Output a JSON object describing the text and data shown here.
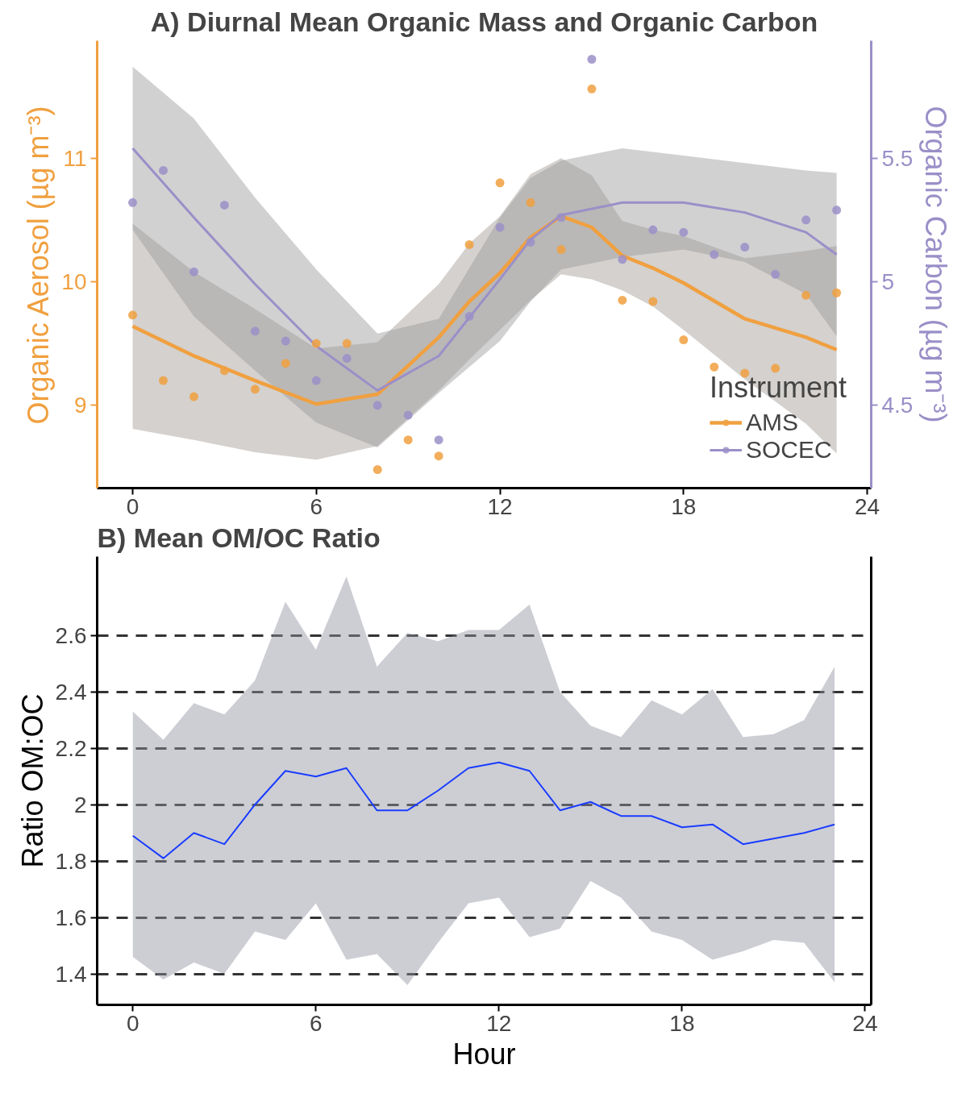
{
  "chart_data": [
    {
      "type": "scatter",
      "title": "A) Diurnal Mean Organic Mass and Organic Carbon",
      "ylabel": "Organic Aerosol (µg m⁻³)",
      "y2label": "Organic Carbon (µg m⁻³)",
      "legend_title": "Instrument",
      "legend": "bottom right",
      "marker": "circle",
      "x": [
        0,
        1,
        2,
        3,
        4,
        5,
        6,
        7,
        8,
        9,
        10,
        11,
        12,
        13,
        14,
        15,
        16,
        17,
        18,
        19,
        20,
        21,
        22,
        23
      ],
      "xlim": [
        -1.16,
        24.13
      ],
      "xticks": [
        0,
        6,
        12,
        18,
        24
      ],
      "ylim": [
        8.33,
        11.95
      ],
      "yticks": [
        9,
        10,
        11
      ],
      "y2lim": [
        4.165,
        5.975
      ],
      "y2ticks": [
        4.5,
        5.0,
        5.5
      ],
      "series": [
        {
          "name": "AMS",
          "type": "line",
          "marker": "none",
          "color": "#f0a040",
          "x": [
            0,
            2,
            4,
            6,
            8,
            10,
            11,
            12,
            13,
            14,
            15,
            16,
            17,
            18,
            20,
            22,
            23
          ],
          "values": [
            9.64,
            9.4,
            9.2,
            9.01,
            9.09,
            9.55,
            9.84,
            10.07,
            10.36,
            10.53,
            10.44,
            10.21,
            10.11,
            9.99,
            9.7,
            9.55,
            9.45
          ],
          "lower": [
            8.81,
            8.72,
            8.62,
            8.56,
            8.67,
            9.12,
            9.37,
            9.61,
            9.85,
            10.06,
            10.02,
            9.93,
            9.8,
            9.61,
            9.21,
            8.85,
            8.61
          ],
          "upper": [
            10.47,
            10.08,
            9.78,
            9.46,
            9.51,
            9.98,
            10.31,
            10.53,
            10.87,
            11.0,
            10.86,
            10.49,
            10.42,
            10.37,
            10.19,
            10.25,
            10.29
          ]
        },
        {
          "name": "SOCEC",
          "type": "line",
          "marker": "none",
          "axis": "y2",
          "color": "#9b8fc8",
          "x": [
            0,
            2,
            4,
            6,
            8,
            10,
            12,
            13,
            14,
            16,
            18,
            20,
            22,
            23
          ],
          "values": [
            5.54,
            5.26,
            4.99,
            4.74,
            4.56,
            4.7,
            5.01,
            5.17,
            5.27,
            5.32,
            5.32,
            5.28,
            5.2,
            5.11
          ],
          "lower": [
            5.21,
            4.86,
            4.64,
            4.43,
            4.33,
            4.55,
            4.76,
            4.92,
            5.05,
            5.1,
            5.13,
            5.08,
            4.95,
            4.78
          ],
          "upper": [
            5.87,
            5.66,
            5.34,
            5.05,
            4.79,
            4.85,
            5.26,
            5.42,
            5.49,
            5.54,
            5.51,
            5.48,
            5.45,
            5.44
          ]
        },
        {
          "type": "scatter",
          "color": "#f0a040",
          "values": [
            9.73,
            9.2,
            9.07,
            9.28,
            9.13,
            9.34,
            9.5,
            9.5,
            8.48,
            8.72,
            8.59,
            10.3,
            10.8,
            10.64,
            10.26,
            11.56,
            9.85,
            9.84,
            9.53,
            9.31,
            9.26,
            9.3,
            9.89,
            9.91
          ]
        },
        {
          "type": "scatter",
          "axis": "y2",
          "color": "#9b8fc8",
          "values": [
            5.32,
            5.45,
            5.04,
            5.31,
            4.8,
            4.76,
            4.6,
            4.69,
            4.5,
            4.46,
            4.36,
            4.86,
            5.22,
            5.16,
            5.26,
            5.9,
            5.09,
            5.21,
            5.2,
            5.11,
            5.14,
            5.03,
            5.25,
            5.29
          ]
        }
      ]
    },
    {
      "type": "line",
      "title": "B) Mean OM/OC Ratio",
      "xlabel": "Hour",
      "ylabel": "Ratio OM:OC",
      "grid": "y",
      "x": [
        0,
        1,
        2,
        3,
        4,
        5,
        6,
        7,
        8,
        9,
        10,
        11,
        12,
        13,
        14,
        15,
        16,
        17,
        18,
        19,
        20,
        21,
        22,
        23
      ],
      "xlim": [
        -1.17,
        24.2
      ],
      "xticks": [
        0,
        6,
        12,
        18,
        24
      ],
      "ylim": [
        1.29,
        2.88
      ],
      "yticks": [
        1.4,
        1.6,
        1.8,
        2,
        2.2,
        2.4,
        2.6
      ],
      "series": [
        {
          "color": "#1a3cff",
          "values": [
            1.89,
            1.81,
            1.9,
            1.86,
            2.0,
            2.12,
            2.1,
            2.13,
            1.98,
            1.98,
            2.05,
            2.13,
            2.15,
            2.12,
            1.98,
            2.01,
            1.96,
            1.96,
            1.92,
            1.93,
            1.86,
            1.88,
            1.9,
            1.93
          ],
          "lower": [
            1.46,
            1.38,
            1.44,
            1.4,
            1.55,
            1.52,
            1.65,
            1.45,
            1.47,
            1.36,
            1.51,
            1.65,
            1.67,
            1.53,
            1.56,
            1.73,
            1.67,
            1.55,
            1.52,
            1.45,
            1.48,
            1.52,
            1.51,
            1.37
          ],
          "upper": [
            2.33,
            2.23,
            2.36,
            2.32,
            2.44,
            2.72,
            2.55,
            2.81,
            2.49,
            2.61,
            2.58,
            2.62,
            2.62,
            2.71,
            2.4,
            2.28,
            2.24,
            2.37,
            2.32,
            2.41,
            2.24,
            2.25,
            2.3,
            2.49
          ]
        }
      ]
    }
  ]
}
